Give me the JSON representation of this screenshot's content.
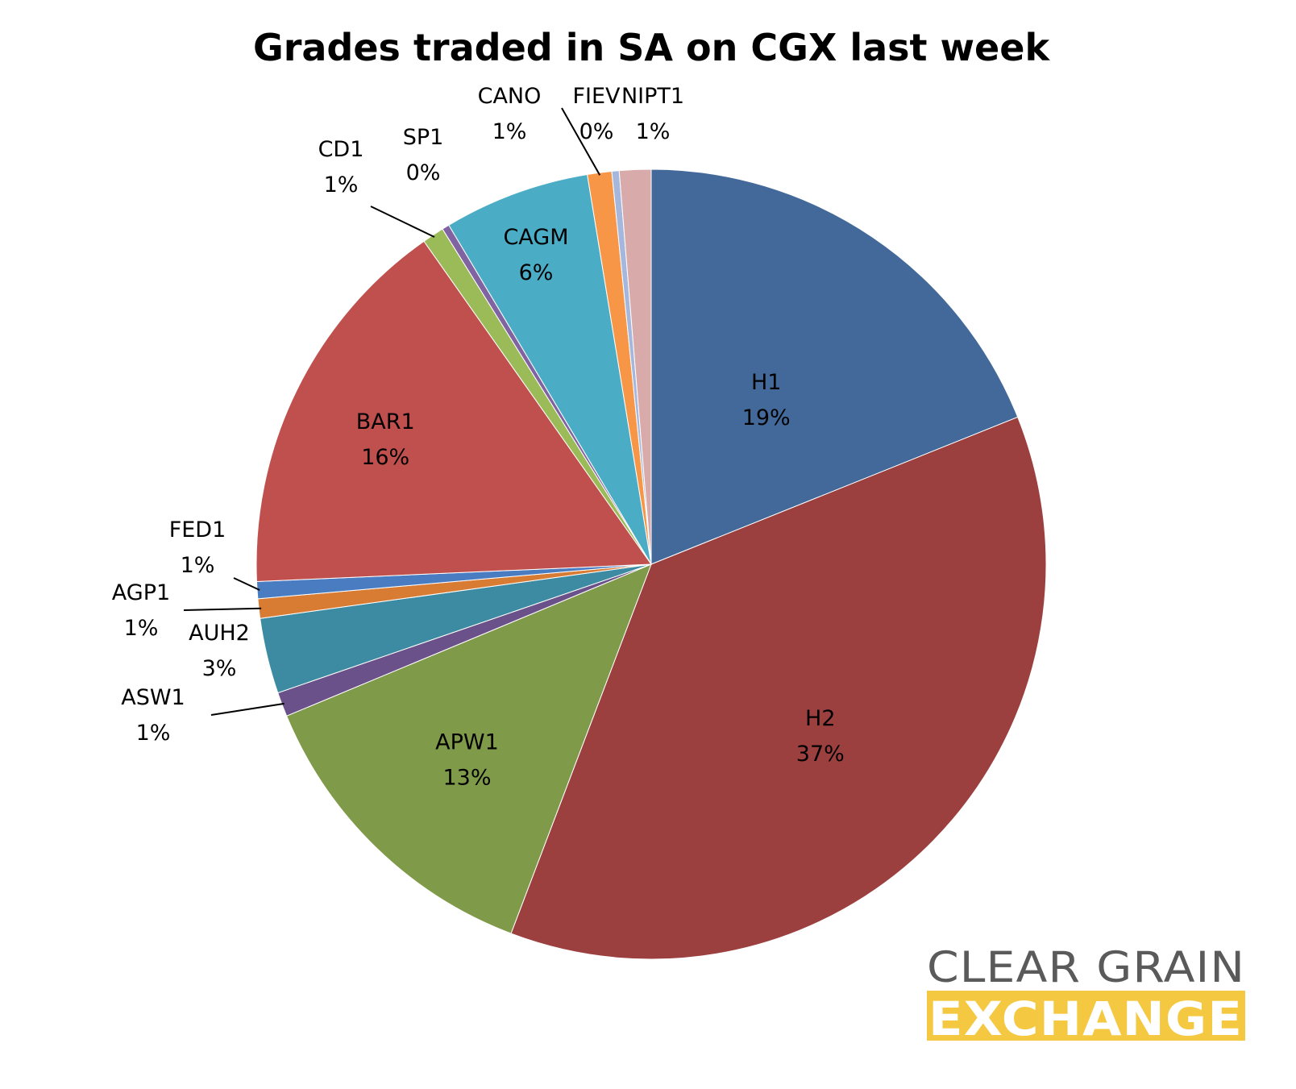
{
  "chart_data": {
    "type": "pie",
    "title": "Grades traded in SA on CGX last week",
    "slices": [
      {
        "name": "H1",
        "label": "19%",
        "value": 19.0,
        "color": "#426999"
      },
      {
        "name": "H2",
        "label": "37%",
        "value": 37.0,
        "color": "#9c3f3f"
      },
      {
        "name": "APW1",
        "label": "13%",
        "value": 13.0,
        "color": "#7f9a48"
      },
      {
        "name": "ASW1",
        "label": "1%",
        "value": 1.0,
        "color": "#6b5189"
      },
      {
        "name": "AUH2",
        "label": "3%",
        "value": 3.1,
        "color": "#3c8ba2"
      },
      {
        "name": "AGP1",
        "label": "1%",
        "value": 0.8,
        "color": "#d87b33"
      },
      {
        "name": "FED1",
        "label": "1%",
        "value": 0.7,
        "color": "#4a7cc1"
      },
      {
        "name": "BAR1",
        "label": "16%",
        "value": 16.0,
        "color": "#c0504d"
      },
      {
        "name": "CD1",
        "label": "1%",
        "value": 0.9,
        "color": "#9bbb59"
      },
      {
        "name": "SP1",
        "label": "0%",
        "value": 0.3,
        "color": "#8064a2"
      },
      {
        "name": "CAGM",
        "label": "6%",
        "value": 6.0,
        "color": "#4bacc6"
      },
      {
        "name": "CANO",
        "label": "1%",
        "value": 1.0,
        "color": "#f79646"
      },
      {
        "name": "FIEV",
        "label": "0%",
        "value": 0.3,
        "color": "#a5b7dd"
      },
      {
        "name": "NIPT1",
        "label": "1%",
        "value": 1.3,
        "color": "#d9aaaa"
      }
    ]
  },
  "logo": {
    "line1": "CLEAR GRAIN",
    "line2": "EXCHANGE",
    "accent_color": "#f5c842",
    "text_color": "#5a5a5a"
  }
}
